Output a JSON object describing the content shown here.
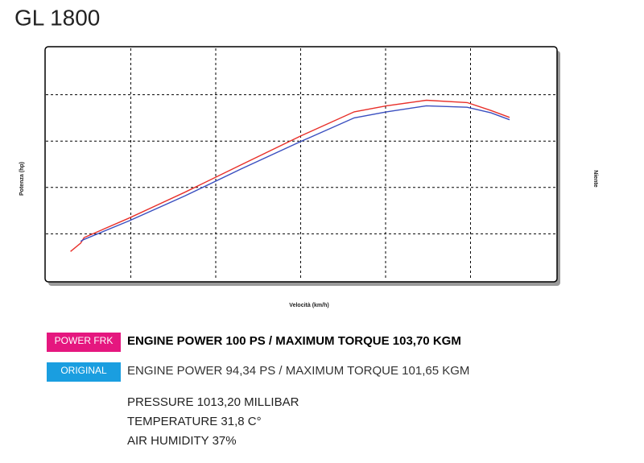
{
  "chart_data": {
    "type": "line",
    "title": "GL 1800",
    "y_label": "Potenza (hp)",
    "y2_label": "Niente",
    "x_label": "Velocità (km/h)",
    "x": [
      0.29,
      0.41,
      0.45,
      0.98,
      1.64,
      2.3,
      3.0,
      3.63,
      4.01,
      4.48,
      4.96,
      5.24,
      5.46
    ],
    "xlim": [
      0,
      6
    ],
    "xticks": [
      1,
      2,
      3,
      4,
      5
    ],
    "ylim": [
      0,
      5
    ],
    "yticks": [
      1,
      2,
      3,
      4
    ],
    "grid": true,
    "series": [
      {
        "name": "POWER FRK",
        "color": "#e8302a",
        "legend_color": "#e5177f",
        "description": "ENGINE POWER 100 PS / MAXIMUM TORQUE 103,70 KGM",
        "values": [
          0.62,
          0.8,
          0.92,
          1.34,
          1.9,
          2.49,
          3.11,
          3.63,
          3.76,
          3.88,
          3.83,
          3.66,
          3.51
        ]
      },
      {
        "name": "ORIGINAL",
        "color": "#3a4fc0",
        "legend_color": "#1a9ee0",
        "description": "ENGINE POWER 94,34 PS / MAXIMUM TORQUE 101,65 KGM",
        "values": [
          null,
          0.84,
          0.88,
          1.28,
          1.82,
          2.4,
          2.99,
          3.5,
          3.63,
          3.76,
          3.73,
          3.61,
          3.46
        ]
      }
    ],
    "conditions": [
      "PRESSURE 1013,20 MILLIBAR",
      "TEMPERATURE 31,8 C°",
      "AIR HUMIDITY 37%"
    ]
  }
}
